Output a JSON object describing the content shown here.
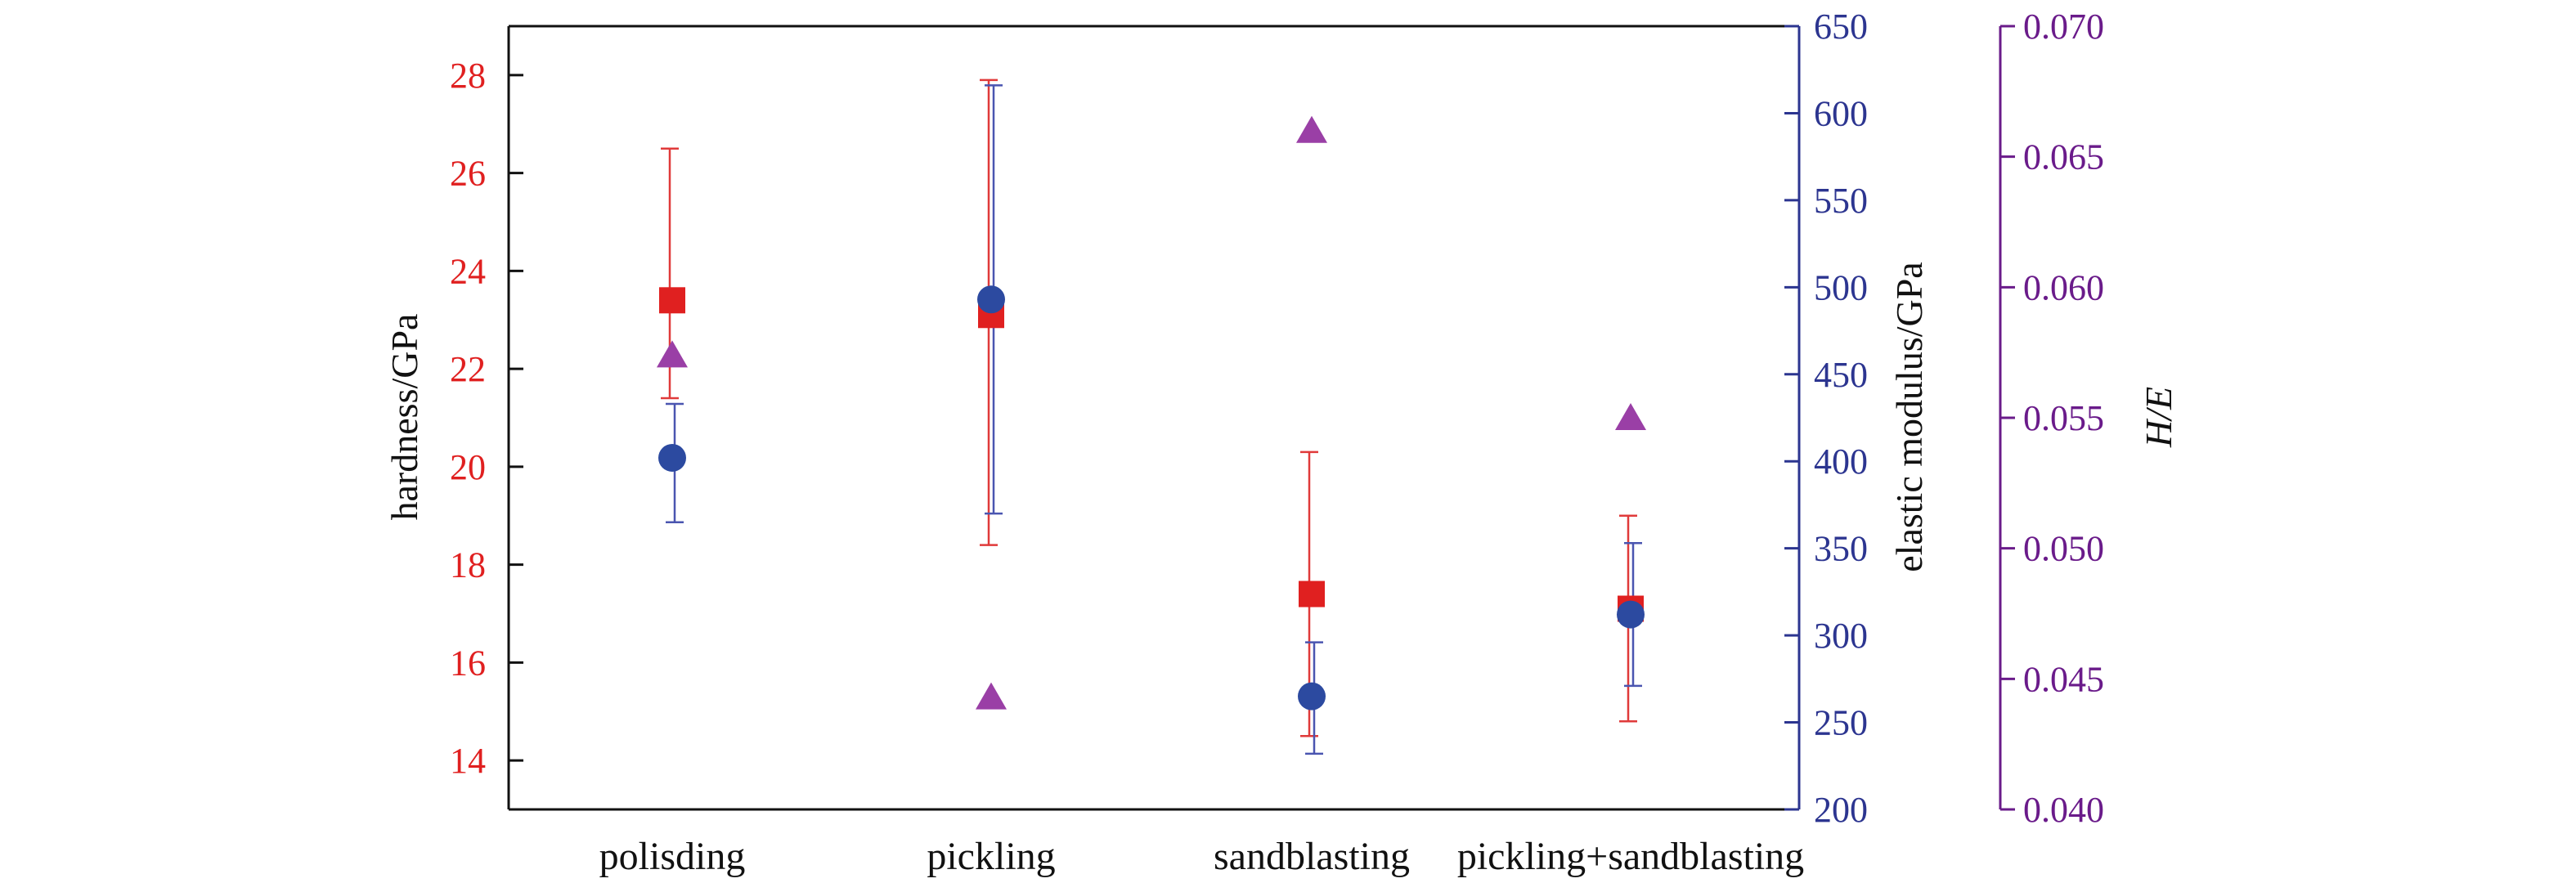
{
  "chart_data": {
    "type": "scatter",
    "categories": [
      "polisding",
      "pickling",
      "sandblasting",
      "pickling+sandblasting"
    ],
    "axes": {
      "left": {
        "label": "hardness/GPa",
        "ylim": [
          13,
          29
        ],
        "ticks": [
          "14",
          "16",
          "18",
          "20",
          "22",
          "24",
          "26",
          "28"
        ],
        "color": "#e02020"
      },
      "right1": {
        "label": "elastic modulus/GPa",
        "ylim": [
          200,
          650
        ],
        "ticks": [
          "200",
          "250",
          "300",
          "350",
          "400",
          "450",
          "500",
          "550",
          "600",
          "650"
        ],
        "color": "#2c3590"
      },
      "right2": {
        "label": "H/E",
        "ylim": [
          0.04,
          0.07
        ],
        "ticks": [
          "0.040",
          "0.045",
          "0.050",
          "0.055",
          "0.060",
          "0.065",
          "0.070"
        ],
        "color": "#6a1b8a"
      }
    },
    "series": [
      {
        "axis": "left",
        "marker": "square",
        "color": "#e02020",
        "values": [
          23.4,
          23.1,
          17.4,
          17.1
        ],
        "err_low": [
          21.4,
          18.4,
          14.5,
          14.8
        ],
        "err_high": [
          26.5,
          27.9,
          20.3,
          19.0
        ]
      },
      {
        "axis": "right1",
        "marker": "circle",
        "color": "#2c4aa0",
        "values": [
          402,
          493,
          265,
          312
        ],
        "err_low": [
          365,
          370,
          232,
          271
        ],
        "err_high": [
          433,
          616,
          296,
          353
        ]
      },
      {
        "axis": "right2",
        "marker": "triangle",
        "color": "#9a3fa6",
        "values": [
          0.0574,
          0.0443,
          0.066,
          0.055
        ]
      }
    ],
    "grid": false,
    "legend": "none"
  }
}
